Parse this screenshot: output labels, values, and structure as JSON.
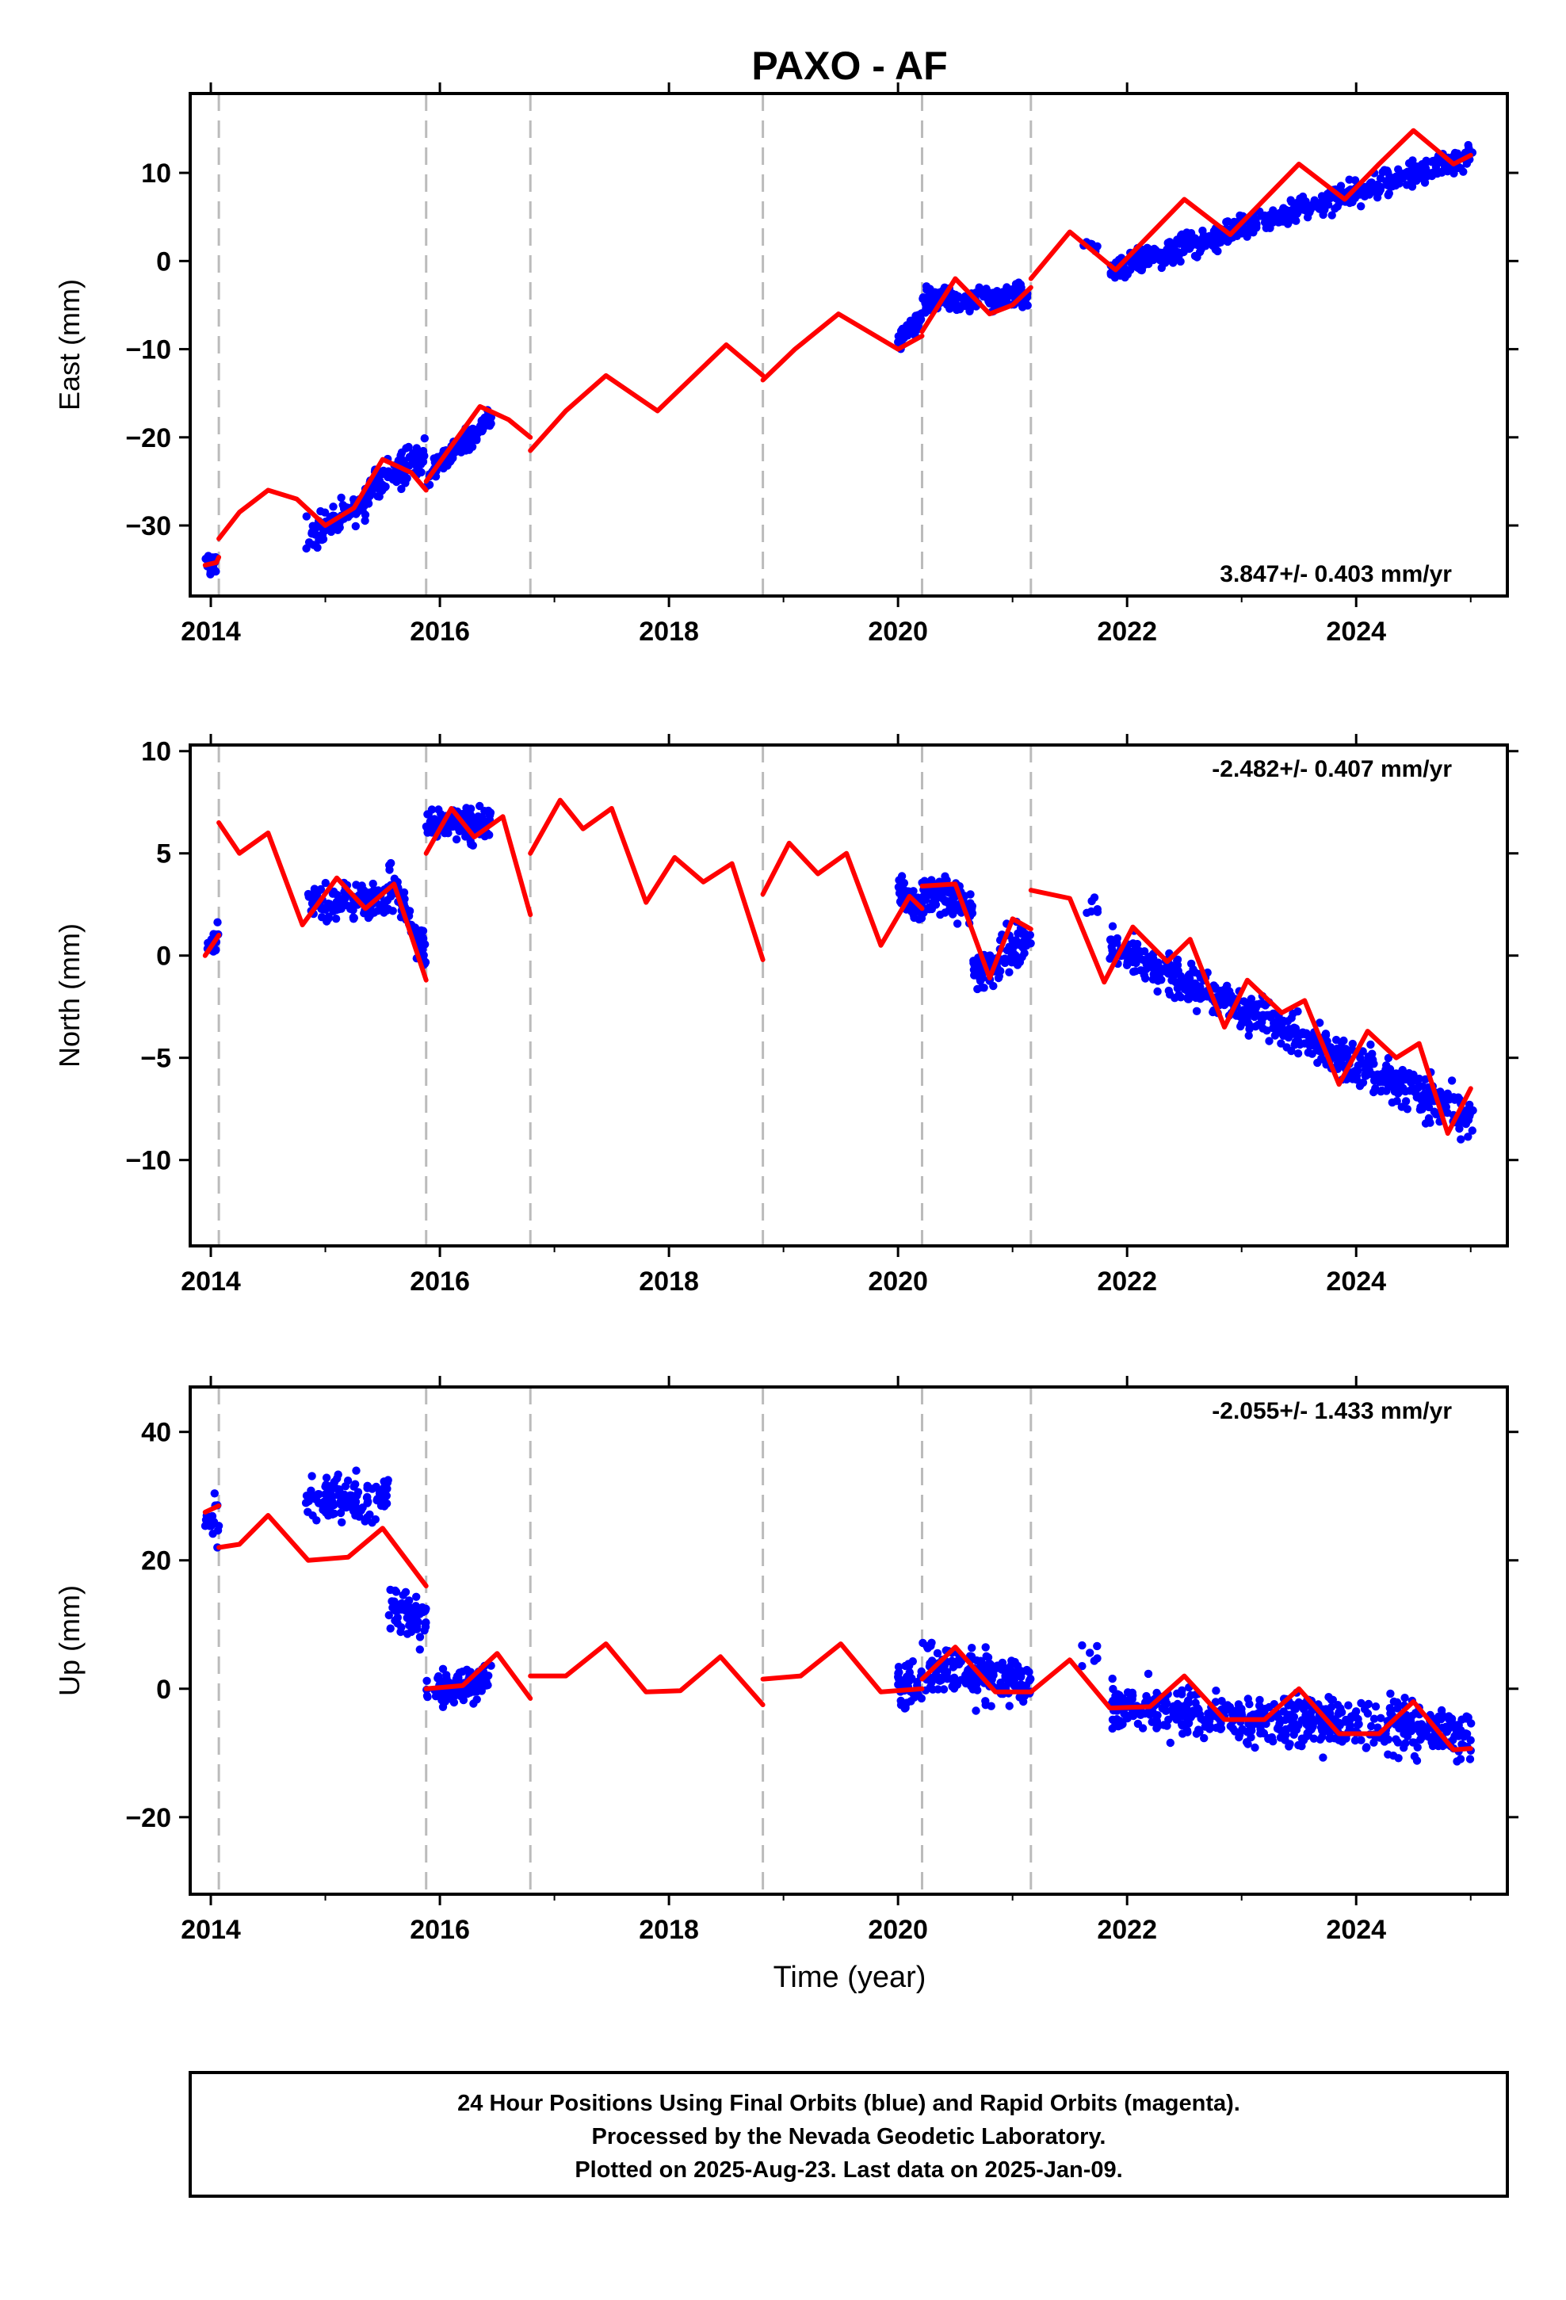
{
  "chart_data": {
    "type": "scatter",
    "title": "PAXO - AF",
    "x_label": "Time (year)",
    "x_ticks": [
      2014,
      2016,
      2018,
      2020,
      2022,
      2024
    ],
    "xlim": [
      2013.82,
      2025.32
    ],
    "offset_lines_year": [
      2014.07,
      2015.88,
      2016.79,
      2018.82,
      2020.21,
      2021.16
    ],
    "colors": {
      "data": "#0000ff",
      "model": "#ff0000",
      "offset_line": "#bbbbbb"
    },
    "panels": [
      {
        "name": "East",
        "ylabel": "East (mm)",
        "ylim": [
          -38,
          19
        ],
        "yticks": [
          -30,
          -20,
          -10,
          0,
          10
        ],
        "rate_text": "3.847+/- 0.403 mm/yr",
        "rate_position": "bottom-right",
        "model": {
          "segments": [
            [
              [
                2013.95,
                -34.5
              ],
              [
                2014.05,
                -34.2
              ],
              [
                2014.07,
                -33.6
              ]
            ],
            [
              [
                2014.07,
                -31.5
              ],
              [
                2014.25,
                -28.5
              ],
              [
                2014.5,
                -26
              ],
              [
                2014.75,
                -27
              ],
              [
                2015.0,
                -30
              ],
              [
                2015.25,
                -28
              ],
              [
                2015.5,
                -22.5
              ],
              [
                2015.75,
                -24
              ],
              [
                2015.88,
                -26
              ]
            ],
            [
              [
                2015.88,
                -25
              ],
              [
                2016.1,
                -21
              ],
              [
                2016.35,
                -16.5
              ],
              [
                2016.6,
                -18
              ],
              [
                2016.79,
                -20
              ]
            ],
            [
              [
                2016.79,
                -21.5
              ],
              [
                2017.1,
                -17
              ],
              [
                2017.45,
                -13
              ],
              [
                2017.9,
                -17
              ],
              [
                2018.5,
                -9.5
              ],
              [
                2018.82,
                -13
              ]
            ],
            [
              [
                2018.82,
                -13.5
              ],
              [
                2019.1,
                -10
              ],
              [
                2019.48,
                -6
              ],
              [
                2020.0,
                -10
              ],
              [
                2020.21,
                -8.5
              ]
            ],
            [
              [
                2020.21,
                -8
              ],
              [
                2020.5,
                -2
              ],
              [
                2020.8,
                -6
              ],
              [
                2021.0,
                -5
              ],
              [
                2021.16,
                -3
              ]
            ],
            [
              [
                2021.16,
                -2
              ],
              [
                2021.5,
                3.3
              ],
              [
                2021.9,
                -1
              ],
              [
                2022.2,
                3
              ],
              [
                2022.5,
                7
              ],
              [
                2022.9,
                3
              ],
              [
                2023.2,
                7
              ],
              [
                2023.5,
                11
              ],
              [
                2023.9,
                7
              ],
              [
                2024.2,
                11
              ],
              [
                2024.5,
                14.8
              ],
              [
                2024.85,
                11
              ],
              [
                2025.0,
                12
              ]
            ]
          ]
        },
        "observations": [
          {
            "t_range": [
              2013.95,
              2014.07
            ],
            "center": [
              -34.5,
              -34.3
            ],
            "spread": 1.8,
            "n": 16
          },
          {
            "t_range": [
              2014.83,
              2015.35
            ],
            "center": [
              -31.5,
              -27.5
            ],
            "spread": 2.2,
            "n": 100
          },
          {
            "t_range": [
              2015.35,
              2015.88
            ],
            "center": [
              -26,
              -22
            ],
            "spread": 2.4,
            "n": 90
          },
          {
            "t_range": [
              2015.88,
              2016.45
            ],
            "center": [
              -24.5,
              -17.5
            ],
            "spread": 1.6,
            "n": 110
          },
          {
            "t_range": [
              2020.0,
              2020.21
            ],
            "center": [
              -9,
              -6
            ],
            "spread": 1.6,
            "n": 50
          },
          {
            "t_range": [
              2020.21,
              2021.16
            ],
            "center": [
              -4.5,
              -4
            ],
            "spread": 1.7,
            "n": 200
          },
          {
            "t_range": [
              2021.6,
              2021.75
            ],
            "center": [
              2,
              1.5
            ],
            "spread": 1.2,
            "n": 6
          },
          {
            "t_range": [
              2021.85,
              2025.02
            ],
            "center": [
              -1,
              12
            ],
            "spread": 1.7,
            "n": 560
          }
        ]
      },
      {
        "name": "North",
        "ylabel": "North (mm)",
        "ylim": [
          -14.2,
          10.3
        ],
        "yticks": [
          -10,
          -5,
          0,
          5,
          10
        ],
        "rate_text": "-2.482+/- 0.407 mm/yr",
        "rate_position": "top-right",
        "model": {
          "segments": [
            [
              [
                2013.95,
                0
              ],
              [
                2014.07,
                1
              ]
            ],
            [
              [
                2014.07,
                6.5
              ],
              [
                2014.25,
                5
              ],
              [
                2014.5,
                6
              ],
              [
                2014.8,
                1.5
              ],
              [
                2015.1,
                3.8
              ],
              [
                2015.35,
                2.3
              ],
              [
                2015.6,
                3.5
              ],
              [
                2015.88,
                -1.2
              ]
            ],
            [
              [
                2015.88,
                5
              ],
              [
                2016.1,
                7.2
              ],
              [
                2016.3,
                5.8
              ],
              [
                2016.55,
                6.8
              ],
              [
                2016.79,
                2
              ]
            ],
            [
              [
                2016.79,
                5
              ],
              [
                2017.05,
                7.6
              ],
              [
                2017.25,
                6.2
              ],
              [
                2017.5,
                7.2
              ],
              [
                2017.8,
                2.6
              ],
              [
                2018.05,
                4.8
              ],
              [
                2018.3,
                3.6
              ],
              [
                2018.55,
                4.5
              ],
              [
                2018.82,
                -0.2
              ]
            ],
            [
              [
                2018.82,
                3
              ],
              [
                2019.05,
                5.5
              ],
              [
                2019.3,
                4
              ],
              [
                2019.55,
                5
              ],
              [
                2019.85,
                0.5
              ],
              [
                2020.1,
                2.9
              ],
              [
                2020.21,
                2.3
              ]
            ],
            [
              [
                2020.21,
                3.4
              ],
              [
                2020.5,
                3.5
              ],
              [
                2020.8,
                -1.1
              ],
              [
                2021.0,
                1.8
              ],
              [
                2021.16,
                1.3
              ]
            ],
            [
              [
                2021.16,
                3.2
              ],
              [
                2021.5,
                2.8
              ],
              [
                2021.8,
                -1.3
              ],
              [
                2022.05,
                1.4
              ],
              [
                2022.35,
                -0.3
              ],
              [
                2022.55,
                0.8
              ],
              [
                2022.85,
                -3.5
              ],
              [
                2023.05,
                -1.2
              ],
              [
                2023.35,
                -2.8
              ],
              [
                2023.55,
                -2.2
              ],
              [
                2023.85,
                -6.3
              ],
              [
                2024.1,
                -3.7
              ],
              [
                2024.35,
                -5
              ],
              [
                2024.55,
                -4.3
              ],
              [
                2024.8,
                -8.7
              ],
              [
                2025.0,
                -6.5
              ]
            ]
          ]
        },
        "observations": [
          {
            "t_range": [
              2013.95,
              2014.07
            ],
            "center": [
              0,
              1
            ],
            "spread": 1.0,
            "n": 16
          },
          {
            "t_range": [
              2014.83,
              2015.55
            ],
            "center": [
              2.5,
              2.8
            ],
            "spread": 1.2,
            "n": 120
          },
          {
            "t_range": [
              2015.55,
              2015.88
            ],
            "center": [
              4,
              0
            ],
            "spread": 1.4,
            "n": 70
          },
          {
            "t_range": [
              2015.88,
              2016.45
            ],
            "center": [
              6.5,
              6.5
            ],
            "spread": 1.0,
            "n": 110
          },
          {
            "t_range": [
              2020.0,
              2020.21
            ],
            "center": [
              3,
              2.5
            ],
            "spread": 1.2,
            "n": 50
          },
          {
            "t_range": [
              2020.21,
              2020.65
            ],
            "center": [
              3.2,
              2.5
            ],
            "spread": 1.2,
            "n": 100
          },
          {
            "t_range": [
              2020.65,
              2021.16
            ],
            "center": [
              -1,
              1
            ],
            "spread": 1.4,
            "n": 100
          },
          {
            "t_range": [
              2021.6,
              2021.75
            ],
            "center": [
              2.5,
              2.5
            ],
            "spread": 0.7,
            "n": 6
          },
          {
            "t_range": [
              2021.85,
              2025.02
            ],
            "center": [
              0.5,
              -8
            ],
            "spread": 1.3,
            "n": 560
          }
        ]
      },
      {
        "name": "Up",
        "ylabel": "Up (mm)",
        "ylim": [
          -32,
          47
        ],
        "yticks": [
          -20,
          0,
          20,
          40
        ],
        "rate_text": "-2.055+/- 1.433 mm/yr",
        "rate_position": "top-right",
        "model": {
          "segments": [
            [
              [
                2013.95,
                27.5
              ],
              [
                2014.07,
                28.5
              ]
            ],
            [
              [
                2014.07,
                22
              ],
              [
                2014.25,
                22.5
              ],
              [
                2014.5,
                27
              ],
              [
                2014.85,
                20
              ],
              [
                2015.2,
                20.5
              ],
              [
                2015.5,
                25
              ],
              [
                2015.88,
                16
              ]
            ],
            [
              [
                2015.88,
                0
              ],
              [
                2016.2,
                0.5
              ],
              [
                2016.5,
                5.5
              ],
              [
                2016.79,
                -1.5
              ]
            ],
            [
              [
                2016.79,
                2
              ],
              [
                2017.1,
                2
              ],
              [
                2017.45,
                7
              ],
              [
                2017.8,
                -0.5
              ],
              [
                2018.1,
                -0.3
              ],
              [
                2018.45,
                5
              ],
              [
                2018.82,
                -2.5
              ]
            ],
            [
              [
                2018.82,
                1.5
              ],
              [
                2019.15,
                2
              ],
              [
                2019.5,
                7
              ],
              [
                2019.85,
                -0.5
              ],
              [
                2020.21,
                0
              ]
            ],
            [
              [
                2020.21,
                1.5
              ],
              [
                2020.5,
                6.5
              ],
              [
                2020.85,
                -0.5
              ],
              [
                2021.16,
                -0.5
              ]
            ],
            [
              [
                2021.16,
                -0.5
              ],
              [
                2021.5,
                4.5
              ],
              [
                2021.85,
                -3
              ],
              [
                2022.2,
                -2.8
              ],
              [
                2022.5,
                2
              ],
              [
                2022.85,
                -4.8
              ],
              [
                2023.2,
                -4.8
              ],
              [
                2023.5,
                0
              ],
              [
                2023.85,
                -7
              ],
              [
                2024.2,
                -7
              ],
              [
                2024.5,
                -2
              ],
              [
                2024.85,
                -9.5
              ],
              [
                2025.0,
                -9.3
              ]
            ]
          ]
        },
        "observations": [
          {
            "t_range": [
              2013.95,
              2014.07
            ],
            "center": [
              27,
              27
            ],
            "spread": 5.0,
            "n": 16
          },
          {
            "t_range": [
              2014.83,
              2015.55
            ],
            "center": [
              29,
              30
            ],
            "spread": 5.0,
            "n": 120
          },
          {
            "t_range": [
              2015.55,
              2015.88
            ],
            "center": [
              13,
              10
            ],
            "spread": 4.5,
            "n": 70
          },
          {
            "t_range": [
              2015.88,
              2016.45
            ],
            "center": [
              0,
              1
            ],
            "spread": 3.5,
            "n": 110
          },
          {
            "t_range": [
              2020.0,
              2020.21
            ],
            "center": [
              0,
              1
            ],
            "spread": 4.5,
            "n": 50
          },
          {
            "t_range": [
              2020.21,
              2021.16
            ],
            "center": [
              3,
              1
            ],
            "spread": 4.5,
            "n": 200
          },
          {
            "t_range": [
              2021.6,
              2021.75
            ],
            "center": [
              5,
              5
            ],
            "spread": 3.0,
            "n": 6
          },
          {
            "t_range": [
              2021.85,
              2025.02
            ],
            "center": [
              -3,
              -7
            ],
            "spread": 5.0,
            "n": 560
          }
        ]
      }
    ],
    "footer": [
      "24 Hour Positions Using Final Orbits (blue) and Rapid Orbits (magenta).",
      "Processed by the Nevada Geodetic Laboratory.",
      "Plotted on 2025-Aug-23. Last data on 2025-Jan-09."
    ]
  }
}
